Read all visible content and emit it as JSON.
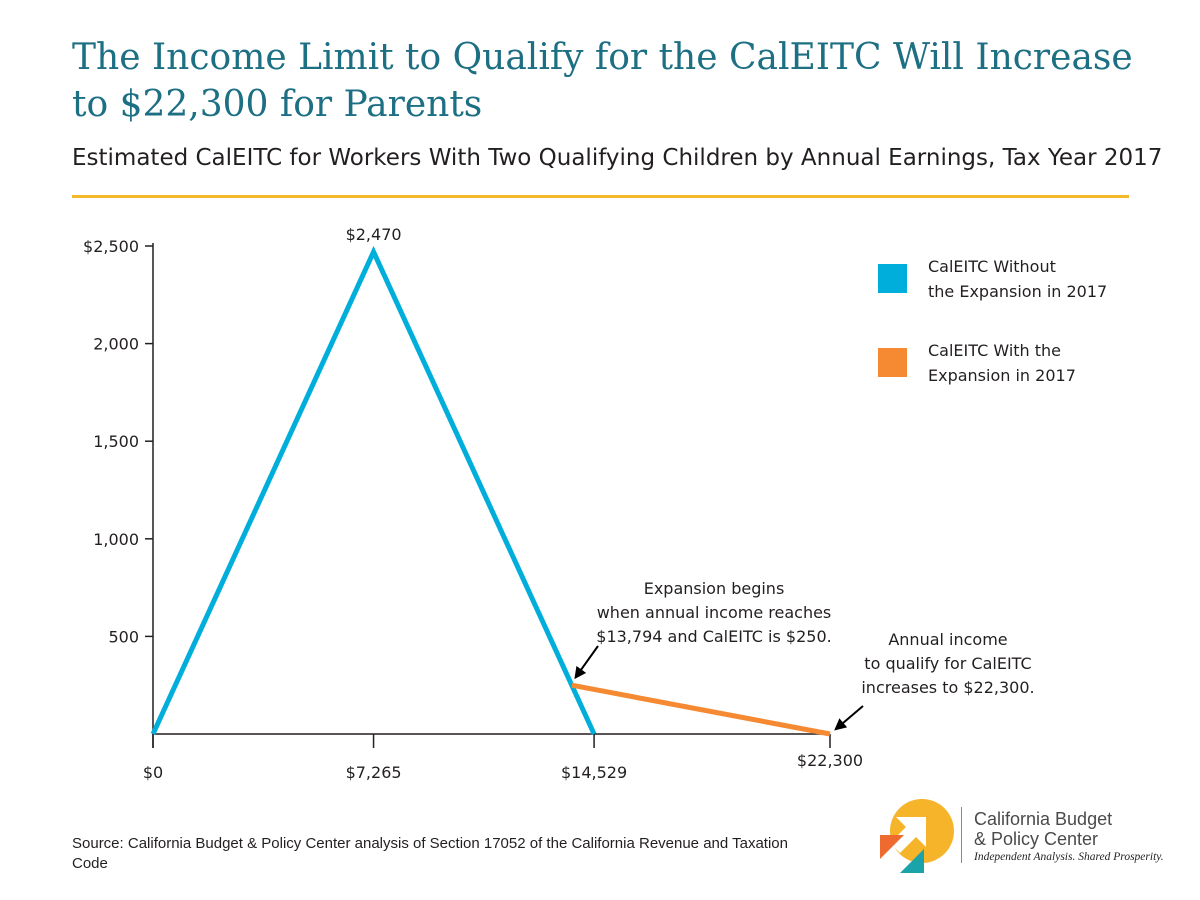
{
  "header": {
    "title": "The Income Limit to Qualify for the CalEITC Will Increase to $22,300 for Parents",
    "subtitle": "Estimated CalEITC for Workers With Two Qualifying Children by Annual Earnings, Tax Year 2017"
  },
  "chart_data": {
    "type": "line",
    "title": "The Income Limit to Qualify for the CalEITC Will Increase to $22,300 for Parents",
    "subtitle": "Estimated CalEITC for Workers With Two Qualifying Children by Annual Earnings, Tax Year 2017",
    "xlabel": "",
    "ylabel": "",
    "xlim": [
      0,
      22300
    ],
    "ylim": [
      0,
      2500
    ],
    "x_ticks": [
      0,
      7265,
      14529,
      22300
    ],
    "x_tick_labels": [
      "$0",
      "$7,265",
      "$14,529",
      "$22,300"
    ],
    "y_ticks": [
      500,
      1000,
      1500,
      2000,
      2500
    ],
    "y_tick_labels": [
      "500",
      "1,000",
      "1,500",
      "2,000",
      "$2,500"
    ],
    "grid": false,
    "legend_position": "top-right",
    "series": [
      {
        "name": "CalEITC Without the Expansion in 2017",
        "color": "#00aedb",
        "x": [
          0,
          7265,
          14529
        ],
        "y": [
          0,
          2470,
          0
        ]
      },
      {
        "name": "CalEITC With the Expansion in 2017",
        "color": "#f58a33",
        "x": [
          13794,
          22300
        ],
        "y": [
          250,
          0
        ]
      }
    ],
    "annotations": [
      {
        "name": "peak-label",
        "text": "$2,470",
        "x": 7265,
        "y": 2470
      },
      {
        "name": "expansion-begins",
        "lines": [
          "Expansion begins",
          "when annual income reaches",
          "$13,794 and CalEITC is $250."
        ],
        "x": 13794,
        "y": 250
      },
      {
        "name": "income-limit",
        "lines": [
          "Annual income",
          "to qualify for CalEITC",
          "increases to $22,300."
        ],
        "x": 22300,
        "y": 0
      }
    ]
  },
  "legend": {
    "items": [
      {
        "label_lines": [
          "CalEITC Without",
          "the Expansion in 2017"
        ],
        "color": "#00aedb"
      },
      {
        "label_lines": [
          "CalEITC With the",
          "Expansion in 2017"
        ],
        "color": "#f58a33"
      }
    ]
  },
  "footer": {
    "source": "Source: California Budget & Policy Center analysis of Section 17052 of the California Revenue and Taxation Code"
  },
  "logo": {
    "name_line1": "California Budget",
    "name_line2": "& Policy Center",
    "tagline": "Independent Analysis. Shared Prosperity.",
    "colors": {
      "yellow": "#f6b42b",
      "orange": "#ef6a2e",
      "teal": "#1aa3a9"
    }
  }
}
